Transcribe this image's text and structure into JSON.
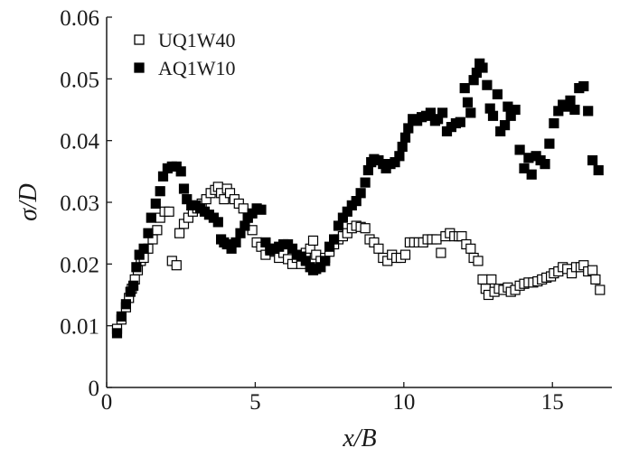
{
  "chart_data": {
    "type": "scatter",
    "title": "",
    "xlabel": "x/B",
    "ylabel": "σ/D",
    "xlim": [
      0,
      17
    ],
    "ylim": [
      0,
      0.06
    ],
    "x_ticks": [
      {
        "value": 0,
        "label": "0"
      },
      {
        "value": 5,
        "label": "5"
      },
      {
        "value": 10,
        "label": "10"
      },
      {
        "value": 15,
        "label": "15"
      }
    ],
    "y_ticks": [
      {
        "value": 0,
        "label": "0"
      },
      {
        "value": 0.01,
        "label": "0.01"
      },
      {
        "value": 0.02,
        "label": "0.02"
      },
      {
        "value": 0.03,
        "label": "0.03"
      },
      {
        "value": 0.04,
        "label": "0.04"
      },
      {
        "value": 0.05,
        "label": "0.05"
      },
      {
        "value": 0.06,
        "label": "0.06"
      }
    ],
    "grid": false,
    "legend_position": "top-left",
    "series": [
      {
        "name": "UQ1W40",
        "marker": "open-square",
        "color": "#000000",
        "points": [
          [
            0.35,
            0.0095
          ],
          [
            0.5,
            0.011
          ],
          [
            0.65,
            0.013
          ],
          [
            0.75,
            0.0145
          ],
          [
            0.85,
            0.016
          ],
          [
            0.95,
            0.0175
          ],
          [
            1.05,
            0.019
          ],
          [
            1.15,
            0.0205
          ],
          [
            1.25,
            0.021
          ],
          [
            1.4,
            0.0225
          ],
          [
            1.55,
            0.024
          ],
          [
            1.7,
            0.0255
          ],
          [
            1.8,
            0.0275
          ],
          [
            1.95,
            0.0285
          ],
          [
            2.1,
            0.0285
          ],
          [
            2.2,
            0.0205
          ],
          [
            2.35,
            0.0198
          ],
          [
            2.45,
            0.025
          ],
          [
            2.6,
            0.0265
          ],
          [
            2.75,
            0.0275
          ],
          [
            2.9,
            0.0285
          ],
          [
            3.05,
            0.029
          ],
          [
            3.2,
            0.0298
          ],
          [
            3.35,
            0.0305
          ],
          [
            3.5,
            0.0315
          ],
          [
            3.65,
            0.032
          ],
          [
            3.75,
            0.0325
          ],
          [
            3.85,
            0.0315
          ],
          [
            3.95,
            0.0305
          ],
          [
            4.05,
            0.0322
          ],
          [
            4.15,
            0.0315
          ],
          [
            4.3,
            0.0305
          ],
          [
            4.45,
            0.0298
          ],
          [
            4.6,
            0.029
          ],
          [
            4.75,
            0.0275
          ],
          [
            4.9,
            0.0255
          ],
          [
            5.05,
            0.0235
          ],
          [
            5.2,
            0.0228
          ],
          [
            5.35,
            0.0215
          ],
          [
            5.5,
            0.0225
          ],
          [
            5.65,
            0.022
          ],
          [
            5.8,
            0.021
          ],
          [
            5.95,
            0.0218
          ],
          [
            6.1,
            0.0208
          ],
          [
            6.25,
            0.02
          ],
          [
            6.4,
            0.021
          ],
          [
            6.55,
            0.02
          ],
          [
            6.7,
            0.0218
          ],
          [
            6.85,
            0.0225
          ],
          [
            6.95,
            0.0238
          ],
          [
            7.05,
            0.0215
          ],
          [
            7.2,
            0.0205
          ],
          [
            7.35,
            0.021
          ],
          [
            7.5,
            0.022
          ],
          [
            7.65,
            0.0232
          ],
          [
            7.8,
            0.024
          ],
          [
            7.95,
            0.0245
          ],
          [
            8.1,
            0.025
          ],
          [
            8.25,
            0.0258
          ],
          [
            8.4,
            0.0262
          ],
          [
            8.55,
            0.026
          ],
          [
            8.7,
            0.0258
          ],
          [
            8.85,
            0.024
          ],
          [
            9.0,
            0.0235
          ],
          [
            9.15,
            0.0225
          ],
          [
            9.3,
            0.021
          ],
          [
            9.45,
            0.0205
          ],
          [
            9.6,
            0.0215
          ],
          [
            9.75,
            0.021
          ],
          [
            9.9,
            0.021
          ],
          [
            10.05,
            0.0215
          ],
          [
            10.2,
            0.0235
          ],
          [
            10.35,
            0.0235
          ],
          [
            10.5,
            0.0235
          ],
          [
            10.65,
            0.0235
          ],
          [
            10.8,
            0.024
          ],
          [
            10.95,
            0.024
          ],
          [
            11.1,
            0.024
          ],
          [
            11.25,
            0.0218
          ],
          [
            11.4,
            0.0245
          ],
          [
            11.55,
            0.025
          ],
          [
            11.7,
            0.0245
          ],
          [
            11.85,
            0.0245
          ],
          [
            11.95,
            0.0245
          ],
          [
            12.1,
            0.0232
          ],
          [
            12.25,
            0.0225
          ],
          [
            12.35,
            0.021
          ],
          [
            12.5,
            0.0205
          ],
          [
            12.65,
            0.0175
          ],
          [
            12.75,
            0.016
          ],
          [
            12.85,
            0.015
          ],
          [
            12.95,
            0.0175
          ],
          [
            13.05,
            0.0155
          ],
          [
            13.2,
            0.016
          ],
          [
            13.35,
            0.0158
          ],
          [
            13.5,
            0.0162
          ],
          [
            13.6,
            0.0155
          ],
          [
            13.75,
            0.0158
          ],
          [
            13.9,
            0.0165
          ],
          [
            14.05,
            0.0168
          ],
          [
            14.2,
            0.017
          ],
          [
            14.35,
            0.017
          ],
          [
            14.5,
            0.0172
          ],
          [
            14.65,
            0.0175
          ],
          [
            14.8,
            0.0178
          ],
          [
            14.95,
            0.018
          ],
          [
            15.05,
            0.0185
          ],
          [
            15.2,
            0.0188
          ],
          [
            15.35,
            0.0195
          ],
          [
            15.5,
            0.0192
          ],
          [
            15.65,
            0.0185
          ],
          [
            15.8,
            0.0195
          ],
          [
            15.95,
            0.0195
          ],
          [
            16.05,
            0.0198
          ],
          [
            16.2,
            0.0188
          ],
          [
            16.35,
            0.019
          ],
          [
            16.45,
            0.0175
          ],
          [
            16.6,
            0.0158
          ]
        ]
      },
      {
        "name": "AQ1W10",
        "marker": "filled-square",
        "color": "#000000",
        "points": [
          [
            0.35,
            0.0088
          ],
          [
            0.5,
            0.0115
          ],
          [
            0.65,
            0.0135
          ],
          [
            0.8,
            0.0155
          ],
          [
            0.9,
            0.0165
          ],
          [
            1.0,
            0.0195
          ],
          [
            1.1,
            0.0215
          ],
          [
            1.25,
            0.0225
          ],
          [
            1.4,
            0.025
          ],
          [
            1.5,
            0.0275
          ],
          [
            1.65,
            0.0298
          ],
          [
            1.8,
            0.0318
          ],
          [
            1.9,
            0.0342
          ],
          [
            2.05,
            0.0355
          ],
          [
            2.2,
            0.0358
          ],
          [
            2.35,
            0.0358
          ],
          [
            2.5,
            0.035
          ],
          [
            2.6,
            0.0322
          ],
          [
            2.7,
            0.0305
          ],
          [
            2.85,
            0.0295
          ],
          [
            3.0,
            0.0295
          ],
          [
            3.15,
            0.029
          ],
          [
            3.3,
            0.0285
          ],
          [
            3.45,
            0.028
          ],
          [
            3.6,
            0.0275
          ],
          [
            3.75,
            0.0268
          ],
          [
            3.85,
            0.024
          ],
          [
            3.95,
            0.0235
          ],
          [
            4.05,
            0.0232
          ],
          [
            4.2,
            0.0225
          ],
          [
            4.35,
            0.0235
          ],
          [
            4.5,
            0.025
          ],
          [
            4.65,
            0.0262
          ],
          [
            4.75,
            0.0275
          ],
          [
            4.9,
            0.0282
          ],
          [
            5.05,
            0.029
          ],
          [
            5.2,
            0.0288
          ],
          [
            5.35,
            0.0235
          ],
          [
            5.5,
            0.0222
          ],
          [
            5.65,
            0.0225
          ],
          [
            5.8,
            0.0228
          ],
          [
            5.95,
            0.0232
          ],
          [
            6.1,
            0.0232
          ],
          [
            6.25,
            0.0225
          ],
          [
            6.4,
            0.0215
          ],
          [
            6.55,
            0.0212
          ],
          [
            6.7,
            0.0205
          ],
          [
            6.85,
            0.0195
          ],
          [
            6.95,
            0.019
          ],
          [
            7.05,
            0.0192
          ],
          [
            7.2,
            0.0195
          ],
          [
            7.35,
            0.0205
          ],
          [
            7.5,
            0.0228
          ],
          [
            7.65,
            0.024
          ],
          [
            7.8,
            0.0262
          ],
          [
            7.95,
            0.0275
          ],
          [
            8.1,
            0.0285
          ],
          [
            8.25,
            0.0295
          ],
          [
            8.4,
            0.0302
          ],
          [
            8.55,
            0.0315
          ],
          [
            8.7,
            0.0332
          ],
          [
            8.8,
            0.0352
          ],
          [
            8.9,
            0.0365
          ],
          [
            9.0,
            0.037
          ],
          [
            9.15,
            0.0368
          ],
          [
            9.3,
            0.0362
          ],
          [
            9.4,
            0.0355
          ],
          [
            9.55,
            0.0362
          ],
          [
            9.7,
            0.0365
          ],
          [
            9.85,
            0.0375
          ],
          [
            9.95,
            0.039
          ],
          [
            10.05,
            0.0405
          ],
          [
            10.15,
            0.042
          ],
          [
            10.3,
            0.0435
          ],
          [
            10.45,
            0.0432
          ],
          [
            10.6,
            0.0438
          ],
          [
            10.75,
            0.044
          ],
          [
            10.9,
            0.0445
          ],
          [
            11.05,
            0.0432
          ],
          [
            11.15,
            0.0435
          ],
          [
            11.3,
            0.0445
          ],
          [
            11.45,
            0.0415
          ],
          [
            11.6,
            0.0422
          ],
          [
            11.75,
            0.0428
          ],
          [
            11.9,
            0.043
          ],
          [
            12.05,
            0.0485
          ],
          [
            12.15,
            0.0462
          ],
          [
            12.25,
            0.0445
          ],
          [
            12.35,
            0.0498
          ],
          [
            12.45,
            0.051
          ],
          [
            12.55,
            0.0525
          ],
          [
            12.65,
            0.0518
          ],
          [
            12.8,
            0.049
          ],
          [
            12.9,
            0.0452
          ],
          [
            13.0,
            0.044
          ],
          [
            13.15,
            0.0475
          ],
          [
            13.25,
            0.0415
          ],
          [
            13.4,
            0.0425
          ],
          [
            13.5,
            0.0455
          ],
          [
            13.6,
            0.044
          ],
          [
            13.75,
            0.045
          ],
          [
            13.9,
            0.0385
          ],
          [
            14.05,
            0.0355
          ],
          [
            14.2,
            0.0372
          ],
          [
            14.3,
            0.0345
          ],
          [
            14.45,
            0.0375
          ],
          [
            14.6,
            0.0368
          ],
          [
            14.75,
            0.0362
          ],
          [
            14.9,
            0.0395
          ],
          [
            15.05,
            0.0428
          ],
          [
            15.2,
            0.0448
          ],
          [
            15.35,
            0.0458
          ],
          [
            15.5,
            0.0455
          ],
          [
            15.6,
            0.0465
          ],
          [
            15.75,
            0.045
          ],
          [
            15.9,
            0.0485
          ],
          [
            16.05,
            0.0488
          ],
          [
            16.2,
            0.0448
          ],
          [
            16.35,
            0.0368
          ],
          [
            16.55,
            0.0352
          ]
        ]
      }
    ]
  }
}
